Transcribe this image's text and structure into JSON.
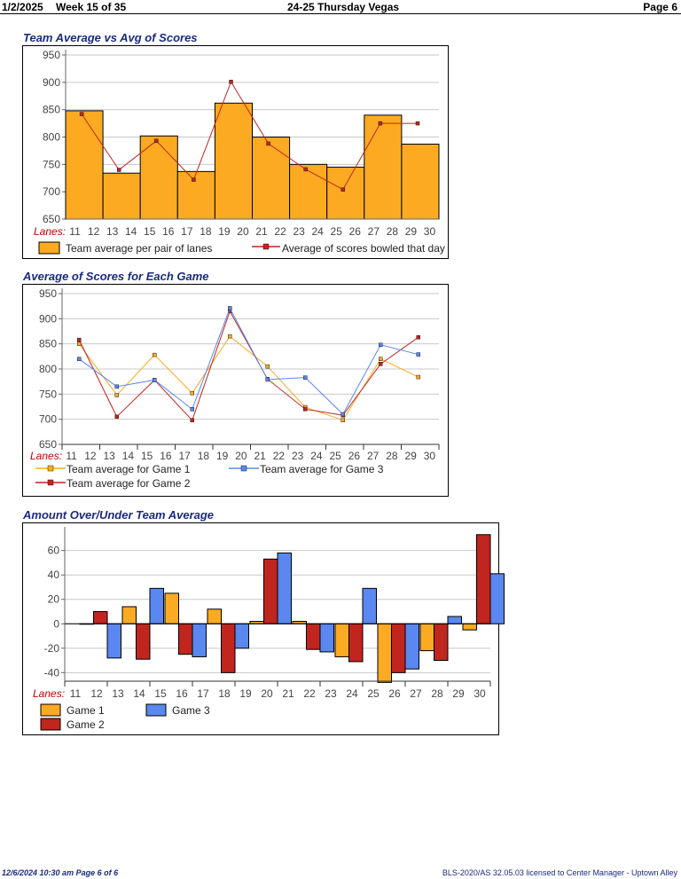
{
  "header": {
    "date": "1/2/2025",
    "week": "Week 15 of 35",
    "league": "24-25 Thursday Vegas",
    "page": "Page 6"
  },
  "footer": {
    "printed": "12/6/2024  10:30 am  Page 6 of 6",
    "license": "BLS-2020/AS 32.05.03 licensed to Center Manager - Uptown Alley"
  },
  "colors": {
    "orange": "#FBAA22",
    "red": "#C0251E",
    "blue": "#5A87F0",
    "title": "#1a2a80"
  },
  "chart_data": [
    {
      "title": "Team Average vs Avg of Scores",
      "type": "bar",
      "lanes_label": "Lanes:",
      "lanes": [
        "11",
        "12",
        "13",
        "14",
        "15",
        "16",
        "17",
        "18",
        "19",
        "20",
        "21",
        "22",
        "23",
        "24",
        "25",
        "26",
        "27",
        "28",
        "29",
        "30"
      ],
      "ylim": [
        650,
        950
      ],
      "yticks": [
        650,
        700,
        750,
        800,
        850,
        900,
        950
      ],
      "series": [
        {
          "name": "Team average per pair of lanes",
          "type": "bar",
          "values": [
            848,
            734,
            802,
            737,
            862,
            800,
            750,
            745,
            840,
            787
          ]
        },
        {
          "name": "Average of scores bowled that day",
          "type": "line",
          "values": [
            842,
            740,
            793,
            722,
            901,
            788,
            741,
            704,
            825,
            825
          ]
        }
      ]
    },
    {
      "title": "Average of Scores for Each Game",
      "type": "line",
      "lanes_label": "Lanes:",
      "lanes": [
        "11",
        "12",
        "13",
        "14",
        "15",
        "16",
        "17",
        "18",
        "19",
        "20",
        "21",
        "22",
        "23",
        "24",
        "25",
        "26",
        "27",
        "28",
        "29",
        "30"
      ],
      "ylim": [
        650,
        950
      ],
      "yticks": [
        650,
        700,
        750,
        800,
        850,
        900,
        950
      ],
      "series": [
        {
          "name": "Team average for Game 1",
          "values": [
            850,
            748,
            828,
            752,
            865,
            805,
            724,
            698,
            820,
            784
          ]
        },
        {
          "name": "Team average for Game 2",
          "values": [
            858,
            705,
            778,
            698,
            915,
            780,
            720,
            708,
            810,
            863
          ]
        },
        {
          "name": "Team average for Game 3",
          "values": [
            820,
            765,
            778,
            720,
            921,
            779,
            783,
            710,
            848,
            829
          ]
        }
      ]
    },
    {
      "title": "Amount Over/Under Team Average",
      "type": "bar",
      "lanes_label": "Lanes:",
      "lanes": [
        "11",
        "12",
        "13",
        "14",
        "15",
        "16",
        "17",
        "18",
        "19",
        "20",
        "21",
        "22",
        "23",
        "24",
        "25",
        "26",
        "27",
        "28",
        "29",
        "30"
      ],
      "ylim": [
        -47,
        75
      ],
      "yticks": [
        -40,
        -20,
        0,
        20,
        40,
        60
      ],
      "series": [
        {
          "name": "Game 1",
          "values": [
            0,
            14,
            25,
            12,
            2,
            2,
            -27,
            -48,
            -22,
            -5
          ]
        },
        {
          "name": "Game 2",
          "values": [
            10,
            -29,
            -25,
            -40,
            53,
            -21,
            -31,
            -40,
            -30,
            73
          ]
        },
        {
          "name": "Game 3",
          "values": [
            -28,
            29,
            -27,
            -20,
            58,
            -23,
            29,
            -37,
            6,
            41
          ]
        }
      ]
    }
  ]
}
